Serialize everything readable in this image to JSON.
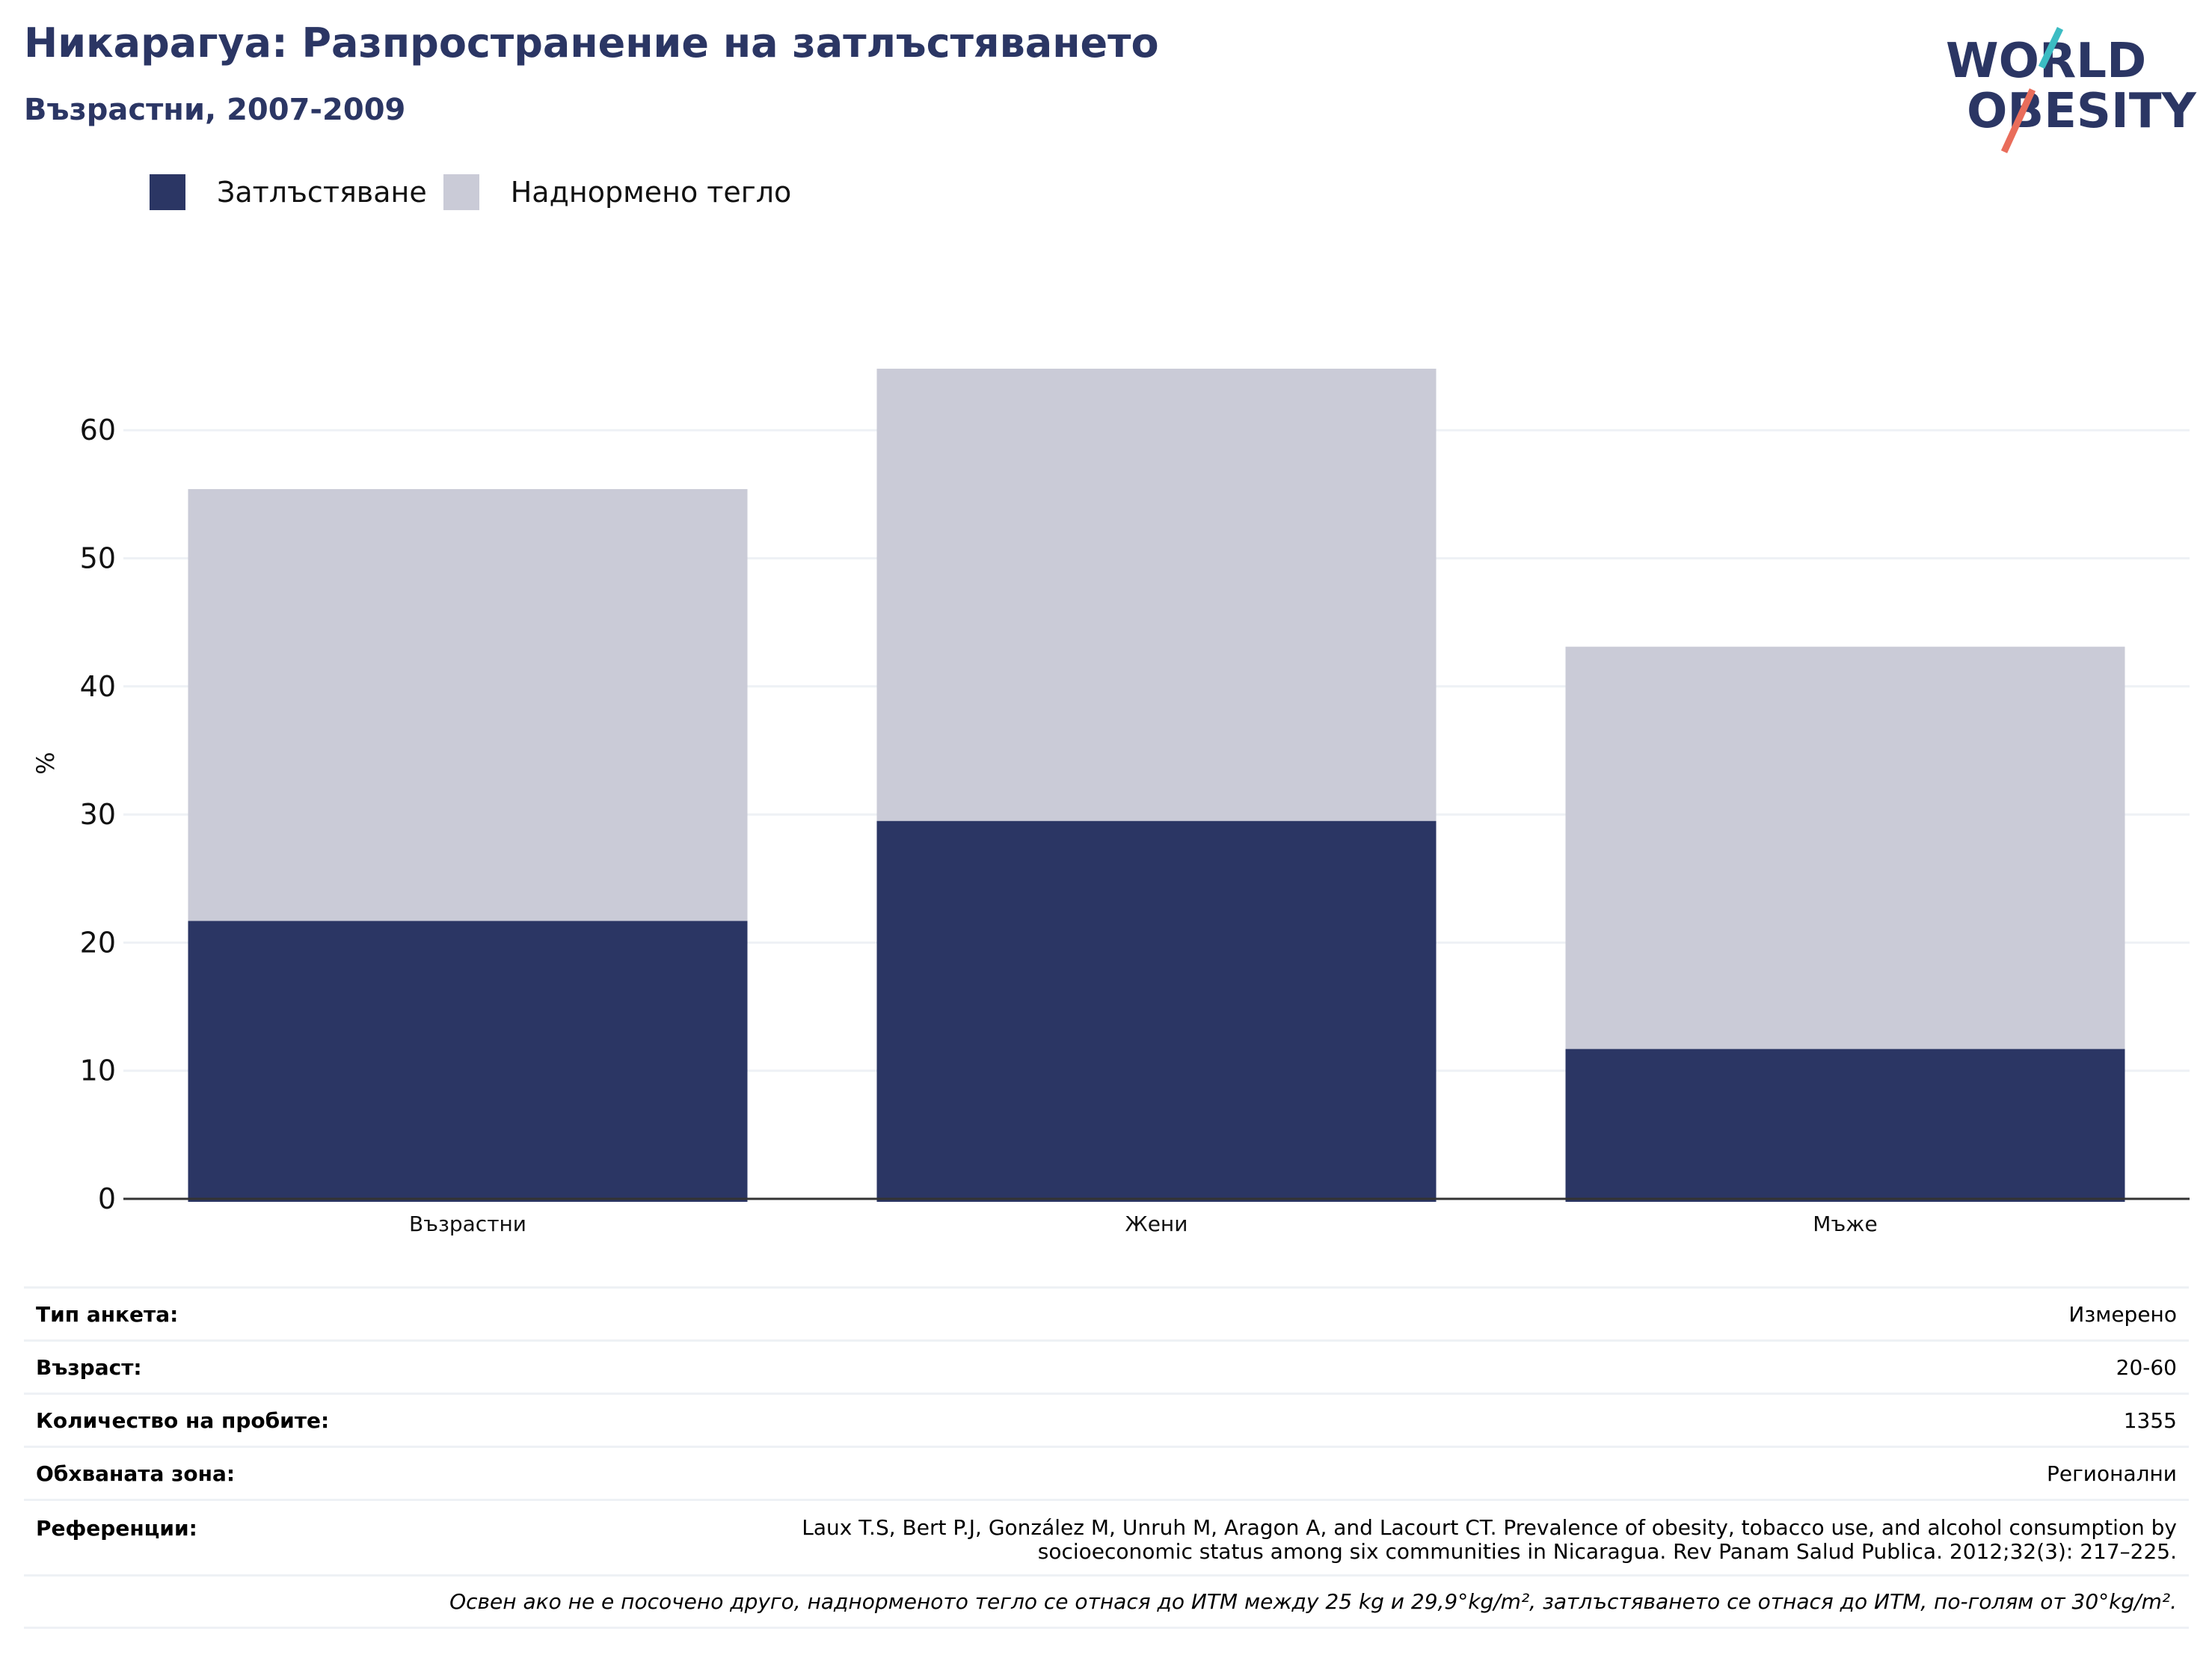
{
  "header": {
    "title": "Никарагуа: Разпространение на затлъстяването",
    "subtitle": "Възрастни, 2007-2009"
  },
  "logo": {
    "line1": "WORLD",
    "line2": "OBESITY",
    "colors": {
      "text": "#2b3664",
      "teal": "#3cbcc3",
      "coral": "#e96d5b"
    }
  },
  "colors": {
    "obesity": "#2b3664",
    "overweight": "#cacbd7",
    "grid": "#eef1f5",
    "axis": "#333333"
  },
  "legend": [
    {
      "label": "Затлъстяване",
      "color": "#2b3664"
    },
    {
      "label": "Наднормено тегло",
      "color": "#cacbd7"
    }
  ],
  "chart_data": {
    "type": "bar",
    "stacked": true,
    "categories": [
      "Възрастни",
      "Жени",
      "Мъже"
    ],
    "series": [
      {
        "name": "Затлъстяване",
        "values": [
          21.7,
          29.5,
          11.7
        ]
      },
      {
        "name": "Наднормено тегло",
        "values": [
          33.7,
          35.3,
          31.4
        ]
      }
    ],
    "totals": [
      55.4,
      64.8,
      43.1
    ],
    "ylabel": "%",
    "yticks": [
      0,
      10,
      20,
      30,
      40,
      50,
      60
    ],
    "ylim": [
      0,
      68
    ],
    "grid": true,
    "legend_position": "top-left"
  },
  "meta": {
    "survey_type": {
      "key": "Тип анкета:",
      "value": "Измерено"
    },
    "age": {
      "key": "Възраст:",
      "value": "20-60"
    },
    "sample_size": {
      "key": "Количество на пробите:",
      "value": "1355"
    },
    "area": {
      "key": "Обхваната зона:",
      "value": "Регионални"
    },
    "references": {
      "key": "Референции:",
      "line1": "Laux T.S, Bert P.J, González M, Unruh M, Aragon A, and Lacourt CT. Prevalence of obesity, tobacco use, and alcohol consumption by",
      "line2": "socioeconomic status among six communities in Nicaragua. Rev Panam Salud Publica. 2012;32(3): 217–225."
    },
    "note": "Освен ако не е посочено друго, наднорменото тегло се отнася до ИТМ между 25 kg и 29,9°kg/m², затлъстяването се отнася до ИТМ, по-голям от 30°kg/m²."
  }
}
